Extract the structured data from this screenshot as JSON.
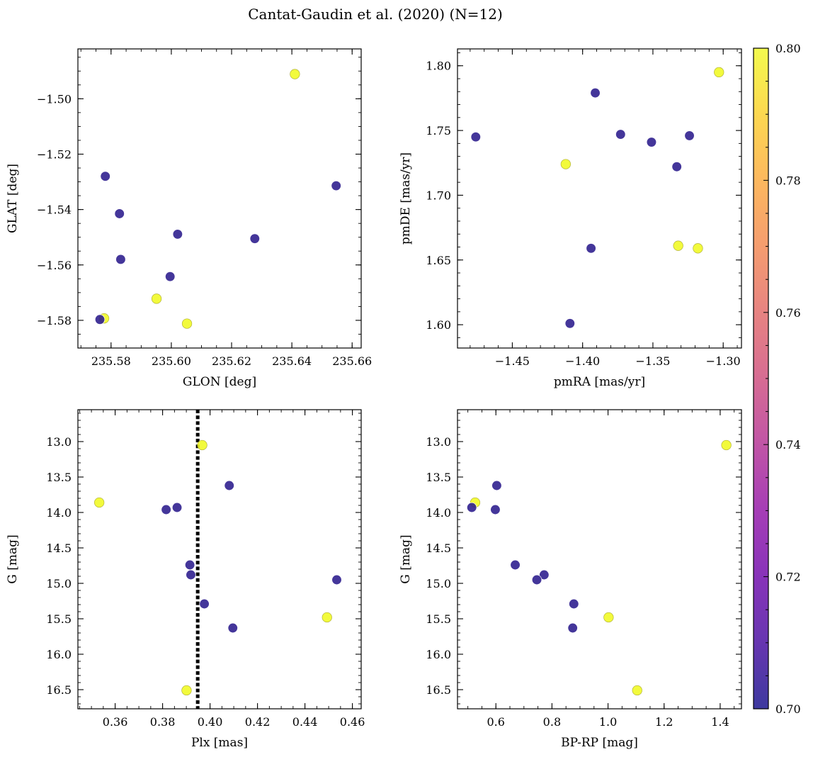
{
  "title": "Cantat-Gaudin et al. (2020) (N=12)",
  "colors": {
    "low": "#2a1a8c",
    "high": "#f0f921",
    "refline": "#000000"
  },
  "chart_data": [
    {
      "type": "scatter",
      "id": "glon-glat",
      "xlabel": "GLON [deg]",
      "ylabel": "GLAT [deg]",
      "xlim": [
        235.569,
        235.663
      ],
      "ylim": [
        -1.59,
        -1.482
      ],
      "y_inverted": false,
      "xticks": [
        235.58,
        235.6,
        235.62,
        235.64,
        235.66
      ],
      "xtick_labels": [
        "235.58",
        "235.60",
        "235.62",
        "235.64",
        "235.66"
      ],
      "yticks": [
        -1.58,
        -1.56,
        -1.54,
        -1.52,
        -1.5
      ],
      "ytick_labels": [
        "−1.58",
        "−1.56",
        "−1.54",
        "−1.52",
        "−1.50"
      ],
      "x": [
        235.641,
        235.5781,
        235.6547,
        235.5828,
        235.6021,
        235.6277,
        235.5832,
        235.5996,
        235.5951,
        235.5777,
        235.5763,
        235.6052
      ],
      "y": [
        -1.4911,
        -1.528,
        -1.5314,
        -1.5415,
        -1.5489,
        -1.5505,
        -1.558,
        -1.5642,
        -1.5722,
        -1.5793,
        -1.5797,
        -1.5812
      ],
      "c": [
        0.8,
        0.7,
        0.7,
        0.7,
        0.7,
        0.7,
        0.7,
        0.7,
        0.8,
        0.8,
        0.7,
        0.8
      ]
    },
    {
      "type": "scatter",
      "id": "pmra-pmde",
      "xlabel": "pmRA [mas/yr]",
      "ylabel": "pmDE [mas/yr]",
      "xlim": [
        -1.489,
        -1.287
      ],
      "ylim": [
        1.582,
        1.813
      ],
      "y_inverted": false,
      "xticks": [
        -1.45,
        -1.4,
        -1.35,
        -1.3
      ],
      "xtick_labels": [
        "−1.45",
        "−1.40",
        "−1.35",
        "−1.30"
      ],
      "yticks": [
        1.6,
        1.65,
        1.7,
        1.75,
        1.8
      ],
      "ytick_labels": [
        "1.60",
        "1.65",
        "1.70",
        "1.75",
        "1.80"
      ],
      "x": [
        -1.303,
        -1.391,
        -1.373,
        -1.476,
        -1.324,
        -1.351,
        -1.412,
        -1.333,
        -1.332,
        -1.318,
        -1.394,
        -1.409
      ],
      "y": [
        1.795,
        1.779,
        1.747,
        1.745,
        1.746,
        1.741,
        1.724,
        1.722,
        1.661,
        1.659,
        1.659,
        1.601
      ],
      "c": [
        0.8,
        0.7,
        0.7,
        0.7,
        0.7,
        0.7,
        0.8,
        0.7,
        0.8,
        0.8,
        0.7,
        0.7
      ]
    },
    {
      "type": "scatter",
      "id": "plx-g",
      "xlabel": "Plx [mas]",
      "ylabel": "G [mag]",
      "xlim": [
        0.3443,
        0.4637
      ],
      "ylim": [
        16.77,
        12.55
      ],
      "y_inverted": true,
      "xticks": [
        0.36,
        0.38,
        0.4,
        0.42,
        0.44,
        0.46
      ],
      "xtick_labels": [
        "0.36",
        "0.38",
        "0.40",
        "0.42",
        "0.44",
        "0.46"
      ],
      "yticks": [
        13.0,
        13.5,
        14.0,
        14.5,
        15.0,
        15.5,
        16.0,
        16.5
      ],
      "ytick_labels": [
        "13.0",
        "13.5",
        "14.0",
        "14.5",
        "15.0",
        "15.5",
        "16.0",
        "16.5"
      ],
      "x": [
        0.3967,
        0.4081,
        0.3533,
        0.3815,
        0.3861,
        0.3915,
        0.3919,
        0.4534,
        0.3976,
        0.4493,
        0.4096,
        0.3901
      ],
      "y": [
        13.05,
        13.62,
        13.86,
        13.96,
        13.93,
        14.74,
        14.88,
        14.95,
        15.29,
        15.48,
        15.63,
        16.51
      ],
      "c": [
        0.8,
        0.7,
        0.8,
        0.7,
        0.7,
        0.7,
        0.7,
        0.7,
        0.7,
        0.8,
        0.7,
        0.8
      ],
      "vline": 0.3948
    },
    {
      "type": "scatter",
      "id": "bprp-g",
      "xlabel": "BP-RP [mag]",
      "ylabel": "G [mag]",
      "xlim": [
        0.463,
        1.476
      ],
      "ylim": [
        16.77,
        12.55
      ],
      "y_inverted": true,
      "xticks": [
        0.6,
        0.8,
        1.0,
        1.2,
        1.4
      ],
      "xtick_labels": [
        "0.6",
        "0.8",
        "1.0",
        "1.2",
        "1.4"
      ],
      "yticks": [
        13.0,
        13.5,
        14.0,
        14.5,
        15.0,
        15.5,
        16.0,
        16.5
      ],
      "ytick_labels": [
        "13.0",
        "13.5",
        "14.0",
        "14.5",
        "15.0",
        "15.5",
        "16.0",
        "16.5"
      ],
      "x": [
        1.422,
        0.603,
        0.526,
        0.598,
        0.514,
        0.669,
        0.772,
        0.746,
        0.878,
        1.002,
        0.874,
        1.104
      ],
      "y": [
        13.05,
        13.62,
        13.86,
        13.96,
        13.93,
        14.74,
        14.88,
        14.95,
        15.29,
        15.48,
        15.63,
        16.51
      ],
      "c": [
        0.8,
        0.7,
        0.8,
        0.7,
        0.7,
        0.7,
        0.7,
        0.7,
        0.7,
        0.8,
        0.7,
        0.8
      ]
    }
  ],
  "colorbar": {
    "range": [
      0.7,
      0.8
    ],
    "ticks": [
      0.7,
      0.72,
      0.74,
      0.76,
      0.78,
      0.8
    ],
    "tick_labels": [
      "0.70",
      "0.72",
      "0.74",
      "0.76",
      "0.78",
      "0.80"
    ],
    "colormap": "plasma"
  }
}
